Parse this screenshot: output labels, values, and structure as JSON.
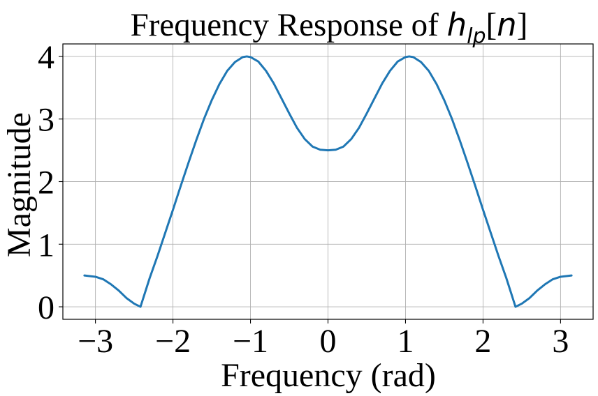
{
  "chart_data": {
    "type": "line",
    "title": {
      "prefix": "Frequency Response of ",
      "symbol": "h",
      "subscript": "lp",
      "open_bracket": "[",
      "argument": "n",
      "close_bracket": "]"
    },
    "xlabel": "Frequency (rad)",
    "ylabel": "Magnitude",
    "xlim": [
      -3.42,
      3.42
    ],
    "ylim": [
      -0.2,
      4.2
    ],
    "x_ticks": [
      -3,
      -2,
      -1,
      0,
      1,
      2,
      3
    ],
    "x_tick_labels": [
      "−3",
      "−2",
      "−1",
      "0",
      "1",
      "2",
      "3"
    ],
    "y_ticks": [
      0,
      1,
      2,
      3,
      4
    ],
    "y_tick_labels": [
      "0",
      "1",
      "2",
      "3",
      "4"
    ],
    "grid": true,
    "series": [
      {
        "color": "#1f77b4",
        "x": [
          -3.1416,
          -3.0,
          -2.9,
          -2.8,
          -2.7,
          -2.6,
          -2.5,
          -2.4189,
          -2.3,
          -2.2,
          -2.1,
          -2.0,
          -1.9,
          -1.8,
          -1.7,
          -1.6,
          -1.5,
          -1.4,
          -1.3,
          -1.2,
          -1.1,
          -1.0472,
          -1.0,
          -0.9,
          -0.8,
          -0.7,
          -0.6,
          -0.5,
          -0.4,
          -0.3,
          -0.2,
          -0.1,
          0.0,
          0.1,
          0.2,
          0.3,
          0.4,
          0.5,
          0.6,
          0.7,
          0.8,
          0.9,
          1.0,
          1.0472,
          1.1,
          1.2,
          1.3,
          1.4,
          1.5,
          1.6,
          1.7,
          1.8,
          1.9,
          2.0,
          2.1,
          2.2,
          2.3,
          2.4189,
          2.5,
          2.6,
          2.7,
          2.8,
          2.9,
          3.0,
          3.1416
        ],
        "y": [
          0.5,
          0.48,
          0.44,
          0.36,
          0.26,
          0.14,
          0.05,
          0.0,
          0.46,
          0.81,
          1.18,
          1.55,
          1.93,
          2.3,
          2.66,
          3.0,
          3.3,
          3.56,
          3.77,
          3.91,
          3.99,
          4.0,
          3.99,
          3.92,
          3.77,
          3.57,
          3.33,
          3.09,
          2.86,
          2.68,
          2.56,
          2.51,
          2.5,
          2.51,
          2.56,
          2.68,
          2.86,
          3.09,
          3.33,
          3.57,
          3.77,
          3.92,
          3.99,
          4.0,
          3.99,
          3.91,
          3.77,
          3.56,
          3.3,
          3.0,
          2.66,
          2.3,
          1.93,
          1.55,
          1.18,
          0.81,
          0.46,
          0.0,
          0.05,
          0.14,
          0.26,
          0.36,
          0.44,
          0.48,
          0.5
        ]
      }
    ]
  }
}
